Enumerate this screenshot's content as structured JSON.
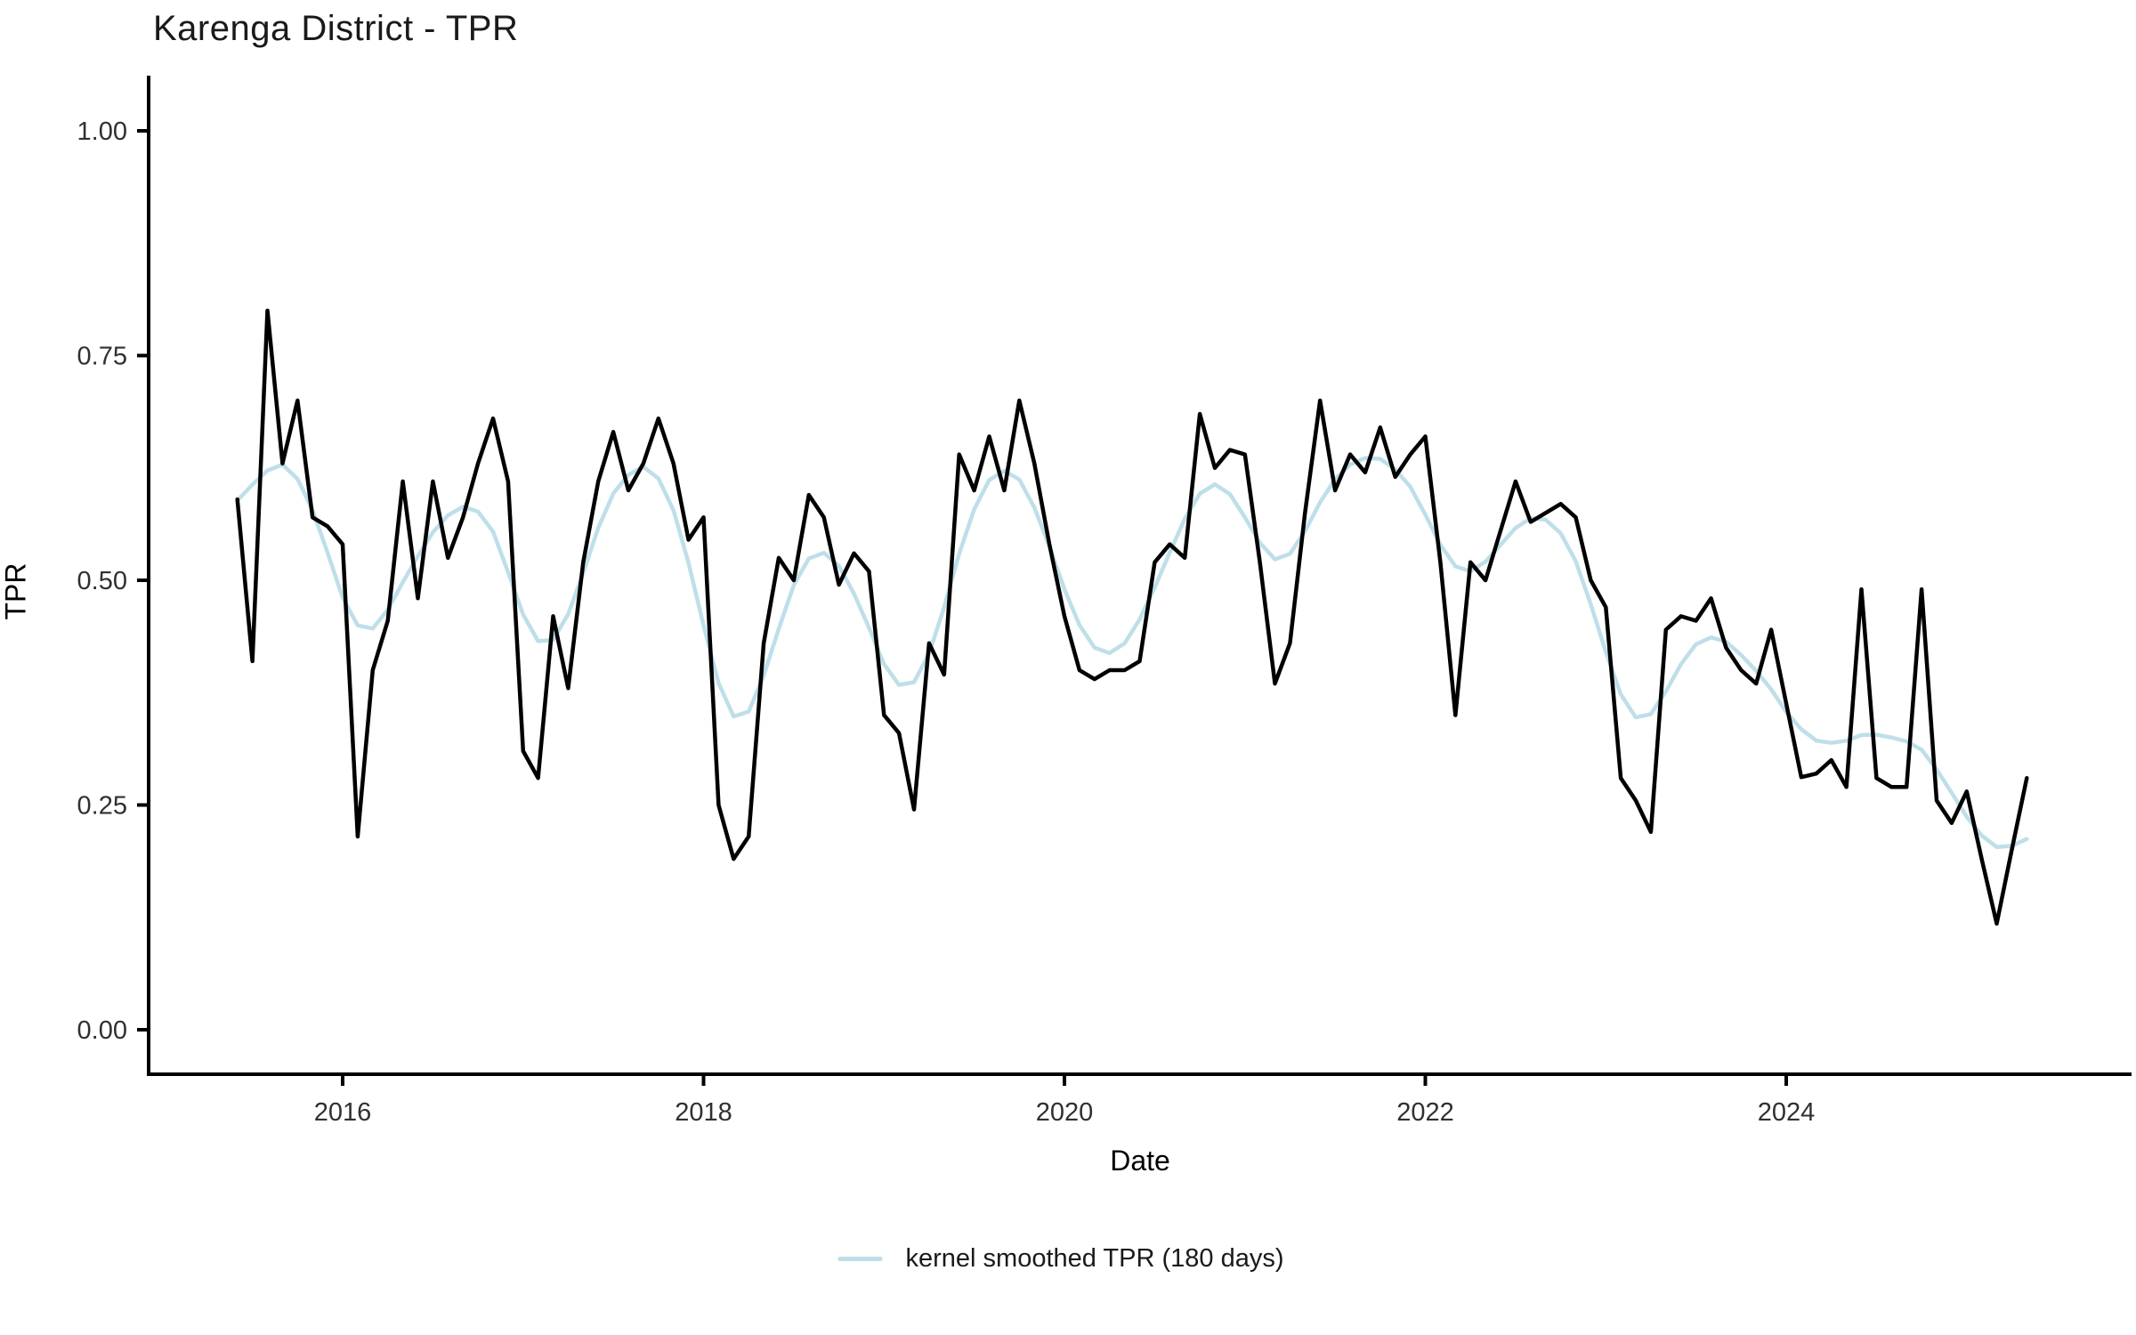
{
  "title": "Karenga District - TPR",
  "axes": {
    "x": {
      "label": "Date",
      "ticks": [
        "2016",
        "2018",
        "2020",
        "2022",
        "2024"
      ],
      "tick_values": [
        2016,
        2018,
        2020,
        2022,
        2024
      ],
      "range_years": [
        2014.93,
        2025.93
      ]
    },
    "y": {
      "label": "TPR",
      "ticks": [
        "0.00",
        "0.25",
        "0.50",
        "0.75",
        "1.00"
      ],
      "tick_values": [
        0,
        0.25,
        0.5,
        0.75,
        1.0
      ],
      "range": [
        -0.05,
        1.06
      ]
    }
  },
  "legend": {
    "label": "kernel smoothed TPR (180 days)",
    "color": "#bedfe9",
    "position": "bottom-center"
  },
  "colors": {
    "raw_line": "#000000",
    "smoothed_line": "#bedfe9",
    "axis": "#000000",
    "tick_text": "#303030"
  },
  "chart_data": {
    "type": "line",
    "title": "Karenga District - TPR",
    "xlabel": "Date",
    "ylabel": "TPR",
    "ylim": [
      0,
      1
    ],
    "grid": false,
    "start_month": "2015-06",
    "frequency": "monthly",
    "series": [
      {
        "name": "TPR",
        "color": "#000000",
        "values": [
          0.59,
          0.41,
          0.8,
          0.63,
          0.7,
          0.57,
          0.56,
          0.54,
          0.215,
          0.4,
          0.455,
          0.61,
          0.48,
          0.61,
          0.525,
          0.57,
          0.63,
          0.68,
          0.61,
          0.31,
          0.28,
          0.46,
          0.38,
          0.52,
          0.61,
          0.665,
          0.6,
          0.63,
          0.68,
          0.63,
          0.545,
          0.57,
          0.25,
          0.19,
          0.215,
          0.43,
          0.525,
          0.5,
          0.595,
          0.57,
          0.495,
          0.53,
          0.51,
          0.35,
          0.33,
          0.245,
          0.43,
          0.395,
          0.64,
          0.6,
          0.66,
          0.6,
          0.7,
          0.63,
          0.54,
          0.46,
          0.4,
          0.39,
          0.4,
          0.4,
          0.41,
          0.52,
          0.54,
          0.525,
          0.685,
          0.625,
          0.645,
          0.64,
          0.52,
          0.385,
          0.43,
          0.575,
          0.7,
          0.6,
          0.64,
          0.62,
          0.67,
          0.615,
          0.64,
          0.66,
          0.52,
          0.35,
          0.52,
          0.5,
          0.555,
          0.61,
          0.565,
          0.575,
          0.585,
          0.57,
          0.5,
          0.47,
          0.28,
          0.255,
          0.22,
          0.445,
          0.46,
          0.455,
          0.48,
          0.425,
          0.4,
          0.385,
          0.445,
          0.363,
          0.281,
          0.285,
          0.3,
          0.27,
          0.49,
          0.28,
          0.27,
          0.27,
          0.49,
          0.255,
          0.23,
          0.265,
          0.19,
          0.118,
          0.2,
          0.28
        ]
      },
      {
        "name": "kernel smoothed TPR (180 days)",
        "color": "#bedfe9",
        "derived": "gaussian kernel smooth of TPR series, 180-day window (sigma ~2 months)"
      }
    ]
  }
}
